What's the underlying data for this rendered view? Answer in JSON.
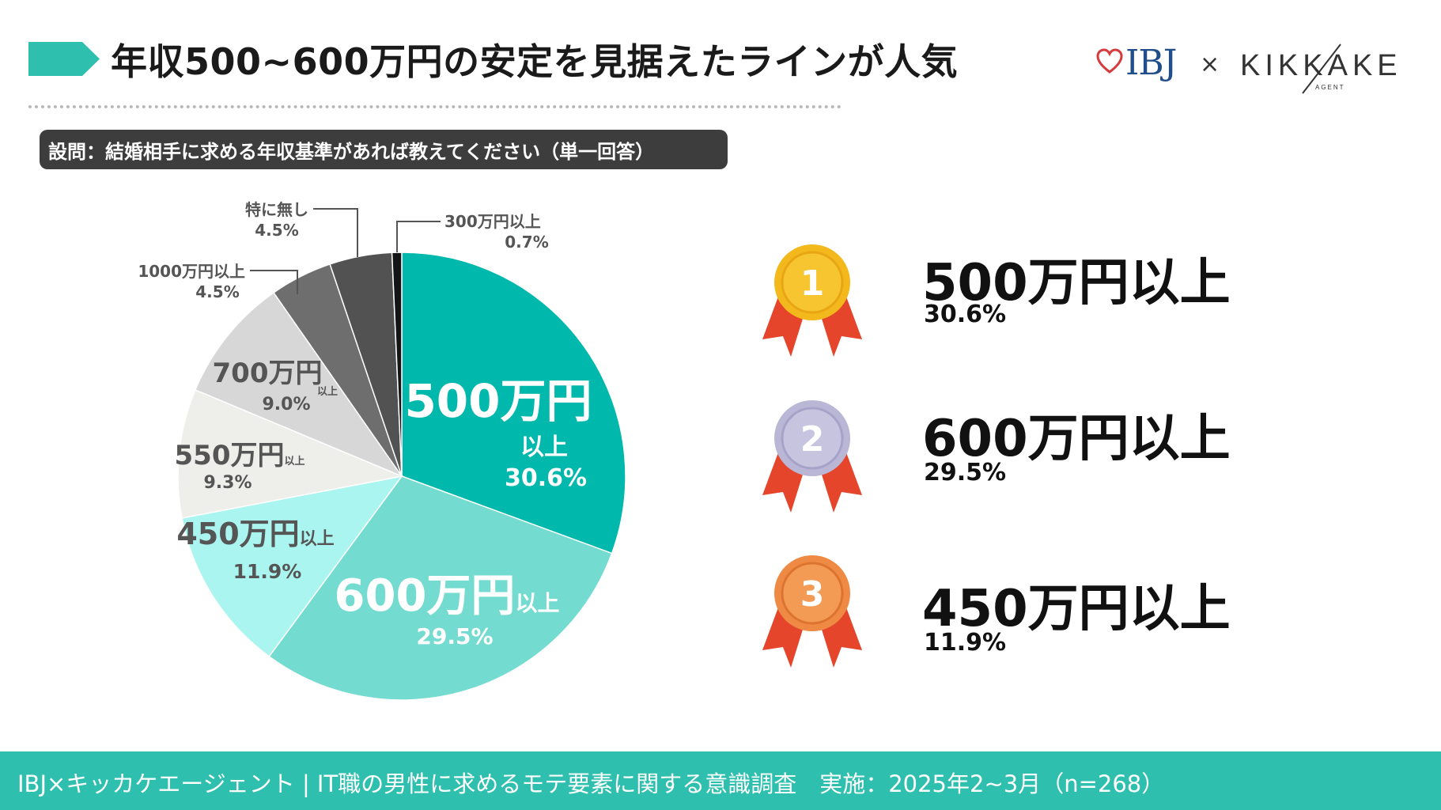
{
  "title": "年収500~600万円の安定を見据えたラインが人気",
  "logos": {
    "ibj": "IBJ",
    "times": "×",
    "kikkake": "KIKKAKE",
    "kikkake_sub": "AGENT"
  },
  "question": "設問：結婚相手に求める年収基準があれば教えてください（単一回答）",
  "chart_data": {
    "type": "pie",
    "slices": [
      {
        "main": "500万円",
        "suffix": "以上",
        "value": 30.6,
        "pct": "30.6%",
        "color": "#00b8ab"
      },
      {
        "main": "600万円",
        "suffix": "以上",
        "value": 29.5,
        "pct": "29.5%",
        "color": "#74dbd0"
      },
      {
        "main": "450万円",
        "suffix": "以上",
        "value": 11.9,
        "pct": "11.9%",
        "color": "#aaf5ef"
      },
      {
        "main": "550万円",
        "suffix": "以上",
        "value": 9.3,
        "pct": "9.3%",
        "color": "#eeeeeb"
      },
      {
        "main": "700万円",
        "suffix": "以上",
        "value": 9.0,
        "pct": "9.0%",
        "color": "#d7d7d7"
      },
      {
        "main": "1000万円以上",
        "suffix": "",
        "value": 4.5,
        "pct": "4.5%",
        "color": "#6e6e6e"
      },
      {
        "main": "特に無し",
        "suffix": "",
        "value": 4.5,
        "pct": "4.5%",
        "color": "#525252"
      },
      {
        "main": "300万円以上",
        "suffix": "",
        "value": 0.7,
        "pct": "0.7%",
        "color": "#141414"
      }
    ]
  },
  "ranking": [
    {
      "rank": "1",
      "label": "500万円以上",
      "pct": "30.6%",
      "medal": "gold"
    },
    {
      "rank": "2",
      "label": "600万円以上",
      "pct": "29.5%",
      "medal": "silver"
    },
    {
      "rank": "3",
      "label": "450万円以上",
      "pct": "11.9%",
      "medal": "bronze"
    }
  ],
  "footer": "IBJ×キッカケエージェント | IT職の男性に求めるモテ要素に関する意識調査　実施：2025年2~3月（n=268）",
  "colors": {
    "accent": "#2ebfae",
    "gold": "#f2b81c",
    "silver": "#b9b6d6",
    "bronze": "#ee8a44",
    "ribbon": "#e5462b"
  }
}
